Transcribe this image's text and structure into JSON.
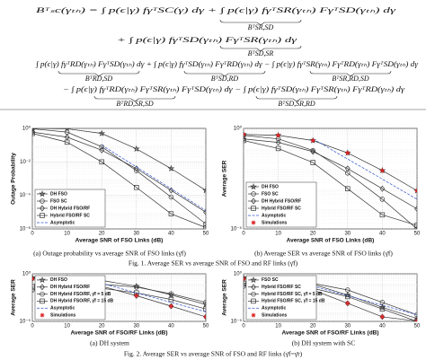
{
  "equations": {
    "lines": [
      "Bᵀₛc(γₜₕ) = ∫ p(ϵ|γ) fγᵀSC(γ) dγ + ∫ p(ϵ|γ) fγᵀSR(γₜₕ) FγᵀSD(γₜₕ) dγ",
      "+ ∫ p(ϵ|γ) fγᵀSD(γₜₕ) FγᵀSR(γₜₕ) dγ",
      "∫ p(ϵ|γ) fγᵀRD(γₜₕ) FγᵀSD(γₜₕ) dγ + ∫ p(ϵ|γ) fγᵀSD(γₜₕ) FγᵀRD(γₜₕ) dγ − ∫ p(ϵ|γ) fγᵀSR(γₜₕ) FγᵀRD(γₜₕ) FγᵀSD(γₜₕ) dγ",
      "− ∫ p(ϵ|γ) fγᵀRD(γₜₕ) FγᵀSR(γₜₕ) FγᵀSD(γₜₕ) dγ − ∫ p(ϵ|γ) fγᵀSD(γₜₕ) FγᵀSR(γₜₕ) FγᵀRD(γₜₕ) dγ"
    ],
    "labels": [
      "BᵀSR,SD",
      "BᵀSD,SR",
      "BᵀRD,SD",
      "BᵀSD,RD",
      "BᵀSR,RD,SD",
      "BᵀRD,SR,SD",
      "BᵀSD,SR,RD"
    ]
  },
  "figures": [
    {
      "caption": "Fig. 1.  Average SER vs average SNR of FSO and RF links (γ̄f)",
      "subcaptions": [
        "(a) Outage probability vs average SNR of FSO links (γ̄f)",
        "(b) Average SER vs average SNR of FSO links (γ̄f)"
      ]
    },
    {
      "caption": "Fig. 2.  Average SER vs average SNR of FSO and RF links (γ̄f=γ̄r)",
      "subcaptions": [
        "(a) DH system",
        "(b) DH system with SC"
      ]
    }
  ],
  "chart_data": [
    {
      "type": "line",
      "xlabel": "Average SNR of FSO Links (dB)",
      "ylabel": "Outage Probability",
      "x": [
        0,
        10,
        20,
        30,
        40,
        50
      ],
      "xlim": [
        0,
        50
      ],
      "xticks": [
        0,
        10,
        20,
        30,
        40,
        50
      ],
      "ylim": [
        1e-06,
        1
      ],
      "log_y": true,
      "grid": true,
      "legend": "lower left",
      "yticks": [
        {
          "value": 1,
          "label": "10⁰"
        },
        {
          "value": 0.01,
          "label": "10⁻²"
        },
        {
          "value": 0.0001,
          "label": "10⁻⁴"
        },
        {
          "value": 1e-06,
          "label": "10⁻⁶"
        }
      ],
      "series": [
        {
          "name": "DH FSO",
          "color": "#333333",
          "marker": "star",
          "values": [
            1,
            0.95,
            0.5,
            0.06,
            0.004,
            0.0002
          ]
        },
        {
          "name": "FSO SC",
          "color": "#333333",
          "marker": "circle",
          "values": [
            0.95,
            0.6,
            0.08,
            0.003,
            8e-05,
            2e-06
          ]
        },
        {
          "name": "DH Hybrid FSO/RF",
          "color": "#333333",
          "marker": "diamond",
          "values": [
            0.6,
            0.3,
            0.05,
            0.004,
            0.0002,
            1e-05
          ]
        },
        {
          "name": "Hybrid FSO/RF SC",
          "color": "#333333",
          "marker": "square",
          "values": [
            0.5,
            0.15,
            0.01,
            0.0003,
            8e-06,
            1.2e-06
          ]
        },
        {
          "name": "Asymptotic",
          "color": "#3355cc",
          "dash": true,
          "values": [
            null,
            null,
            0.1,
            0.005,
            0.00025,
            1.25e-05
          ]
        }
      ]
    },
    {
      "type": "line",
      "xlabel": "Average SNR of FSO Links (dB)",
      "ylabel": "Average SER",
      "x": [
        0,
        10,
        20,
        30,
        40,
        50
      ],
      "xlim": [
        0,
        50
      ],
      "xticks": [
        0,
        10,
        20,
        30,
        40,
        50
      ],
      "ylim": [
        1e-05,
        1
      ],
      "log_y": true,
      "grid": true,
      "legend": "lower left",
      "yticks": [
        {
          "value": 1,
          "label": "10⁰"
        },
        {
          "value": 1e-05,
          "label": "10⁻⁵"
        }
      ],
      "series": [
        {
          "name": "DH FSO",
          "color": "#333333",
          "marker": "star",
          "values": [
            0.5,
            0.45,
            0.25,
            0.06,
            0.008,
            0.0008
          ]
        },
        {
          "name": "FSO SC",
          "color": "#333333",
          "marker": "circle",
          "values": [
            0.45,
            0.3,
            0.08,
            0.006,
            0.0003,
            1e-05
          ]
        },
        {
          "name": "DH Hybrid FSO/RF",
          "color": "#333333",
          "marker": "diamond",
          "values": [
            0.3,
            0.2,
            0.07,
            0.01,
            0.001,
            0.0001
          ]
        },
        {
          "name": "Hybrid FSO/RF SC",
          "color": "#333333",
          "marker": "square",
          "values": [
            0.25,
            0.1,
            0.02,
            0.001,
            5e-05,
            1.5e-05
          ]
        },
        {
          "name": "Asymptotic",
          "color": "#3355cc",
          "dash": true,
          "values": [
            null,
            null,
            0.3,
            0.03,
            0.003,
            0.0003
          ]
        },
        {
          "name": "Simulations",
          "color": "#dd2222",
          "marker": "asterisk",
          "noline": true,
          "values": [
            0.5,
            0.45,
            0.25,
            0.06,
            0.008,
            0.0008
          ]
        }
      ]
    },
    {
      "type": "line",
      "xlabel": "Average SNR of FSO/RF Links (dB)",
      "ylabel": "Average SER",
      "x": [
        0,
        10,
        20,
        30,
        40,
        50
      ],
      "xlim": [
        0,
        50
      ],
      "xticks": [
        0,
        10,
        20,
        30,
        40,
        50
      ],
      "ylim": [
        1e-05,
        1
      ],
      "log_y": true,
      "grid": true,
      "legend": "lower left",
      "yticks": [
        {
          "value": 1,
          "label": "10⁰"
        },
        {
          "value": 1e-05,
          "label": "10⁻⁵"
        }
      ],
      "series": [
        {
          "name": "DH FSO",
          "color": "#333333",
          "marker": "star",
          "values": [
            0.4,
            0.35,
            0.2,
            0.05,
            0.006,
            0.0006
          ]
        },
        {
          "name": "DH Hybrid FSO/RF",
          "color": "#333333",
          "marker": "diamond",
          "values": [
            0.3,
            0.2,
            0.05,
            0.005,
            0.0004,
            3e-05
          ]
        },
        {
          "name": "DH Hybrid FSO/RF, γ̄f = 5 dB",
          "color": "#333333",
          "marker": "circle",
          "values": [
            0.02,
            0.05,
            0.08,
            0.04,
            0.008,
            0.001
          ]
        },
        {
          "name": "DH Hybrid FSO/RF, γ̄f = 15 dB",
          "color": "#333333",
          "marker": "square",
          "values": [
            0.05,
            0.04,
            0.03,
            0.01,
            0.002,
            0.0002
          ]
        },
        {
          "name": "Asymptotic",
          "color": "#3355cc",
          "dash": true,
          "values": [
            null,
            null,
            0.1,
            0.01,
            0.001,
            0.0001
          ]
        },
        {
          "name": "Simulations",
          "color": "#dd2222",
          "marker": "asterisk",
          "noline": true,
          "values": [
            0.3,
            0.2,
            0.05,
            0.005,
            0.0004,
            3e-05
          ]
        }
      ]
    },
    {
      "type": "line",
      "xlabel": "Average SNR of FSO/RF Links (dB)",
      "ylabel": "Average SER",
      "x": [
        0,
        10,
        20,
        30,
        40,
        50
      ],
      "xlim": [
        0,
        50
      ],
      "xticks": [
        0,
        10,
        20,
        30,
        40,
        50
      ],
      "ylim": [
        1e-05,
        1
      ],
      "log_y": true,
      "grid": true,
      "legend": "lower left",
      "yticks": [
        {
          "value": 1,
          "label": "10⁰"
        },
        {
          "value": 1e-05,
          "label": "10⁻⁵"
        }
      ],
      "series": [
        {
          "name": "FSO SC",
          "color": "#333333",
          "marker": "star",
          "values": [
            0.4,
            0.3,
            0.08,
            0.006,
            0.0003,
            2e-05
          ]
        },
        {
          "name": "Hybrid FSO/RF SC",
          "color": "#333333",
          "marker": "diamond",
          "values": [
            0.3,
            0.15,
            0.02,
            0.0008,
            3e-05,
            1.1e-05
          ]
        },
        {
          "name": "Hybrid FSO/RF SC, γ̄f = 5 dB",
          "color": "#333333",
          "marker": "circle",
          "values": [
            0.05,
            0.08,
            0.1,
            0.02,
            0.001,
            5e-05
          ]
        },
        {
          "name": "Hybrid FSO/RF SC, γ̄f = 15 dB",
          "color": "#333333",
          "marker": "square",
          "values": [
            0.1,
            0.06,
            0.03,
            0.004,
            0.0002,
            1e-05
          ]
        },
        {
          "name": "Asymptotic",
          "color": "#3355cc",
          "dash": true,
          "values": [
            null,
            null,
            0.05,
            0.005,
            0.0005,
            5e-05
          ]
        },
        {
          "name": "Simulations",
          "color": "#dd2222",
          "marker": "asterisk",
          "noline": true,
          "values": [
            0.3,
            0.15,
            0.02,
            0.0008,
            3e-05,
            1.1e-05
          ]
        }
      ]
    }
  ]
}
